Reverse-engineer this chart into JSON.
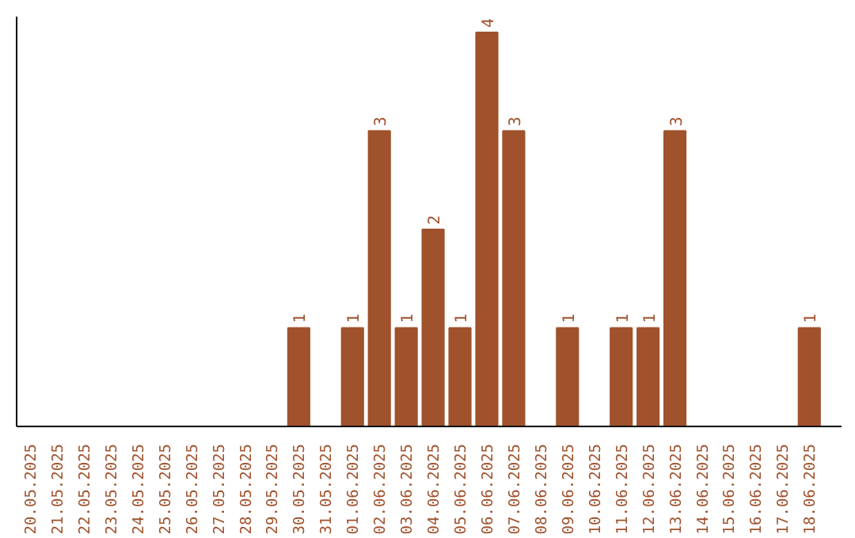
{
  "chart_data": {
    "type": "bar",
    "categories": [
      "20.05.2025",
      "21.05.2025",
      "22.05.2025",
      "23.05.2025",
      "24.05.2025",
      "25.05.2025",
      "26.05.2025",
      "27.05.2025",
      "28.05.2025",
      "29.05.2025",
      "30.05.2025",
      "31.05.2025",
      "01.06.2025",
      "02.06.2025",
      "03.06.2025",
      "04.06.2025",
      "05.06.2025",
      "06.06.2025",
      "07.06.2025",
      "08.06.2025",
      "09.06.2025",
      "10.06.2025",
      "11.06.2025",
      "12.06.2025",
      "13.06.2025",
      "14.06.2025",
      "15.06.2025",
      "16.06.2025",
      "17.06.2025",
      "18.06.2025"
    ],
    "values": [
      0,
      0,
      0,
      0,
      0,
      0,
      0,
      0,
      0,
      0,
      1,
      0,
      1,
      3,
      1,
      2,
      1,
      4,
      3,
      0,
      1,
      0,
      1,
      1,
      3,
      0,
      0,
      0,
      0,
      1
    ],
    "value_labels": [
      null,
      null,
      null,
      null,
      null,
      null,
      null,
      null,
      null,
      null,
      "1",
      null,
      "1",
      "3",
      "1",
      "2",
      "1",
      "4",
      "3",
      null,
      "1",
      null,
      "1",
      "1",
      "3",
      null,
      null,
      null,
      null,
      "1"
    ],
    "color": "#a0522d",
    "tick_labels": "x",
    "grid": false
  }
}
